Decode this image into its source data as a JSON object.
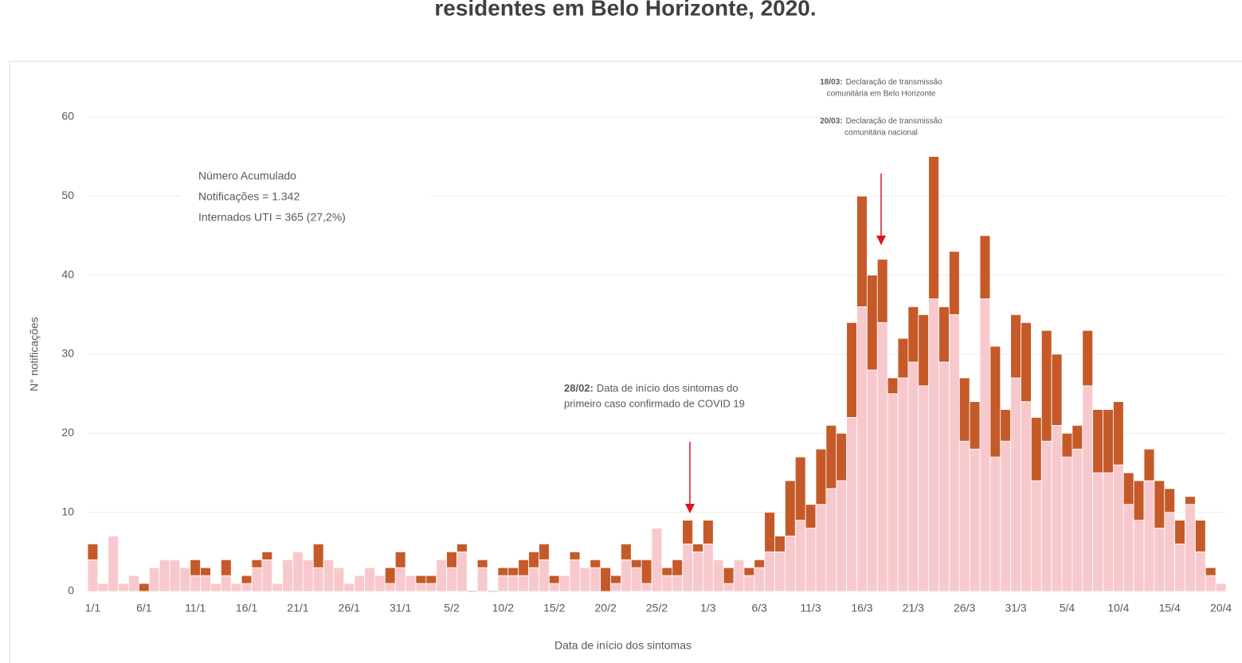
{
  "chart_data": {
    "type": "stacked_bar",
    "title": "residentes em Belo Horizonte, 2020.",
    "ylabel": "N° notificações",
    "xlabel": "Data de início dos sintomas",
    "categories": [
      "1/1",
      null,
      null,
      null,
      null,
      "6/1",
      null,
      null,
      null,
      null,
      "11/1",
      null,
      null,
      null,
      null,
      "16/1",
      null,
      null,
      null,
      null,
      "21/1",
      null,
      null,
      null,
      null,
      "26/1",
      null,
      null,
      null,
      null,
      "31/1",
      null,
      null,
      null,
      null,
      "5/2",
      null,
      null,
      null,
      null,
      "10/2",
      null,
      null,
      null,
      null,
      "15/2",
      null,
      null,
      null,
      null,
      "20/2",
      null,
      null,
      null,
      null,
      "25/2",
      null,
      null,
      null,
      null,
      "1/3",
      null,
      null,
      null,
      null,
      "6/3",
      null,
      null,
      null,
      null,
      "11/3",
      null,
      null,
      null,
      null,
      "16/3",
      null,
      null,
      null,
      null,
      "21/3",
      null,
      null,
      null,
      null,
      "26/3",
      null,
      null,
      null,
      null,
      "31/3",
      null,
      null,
      null,
      null,
      "5/4",
      null,
      null,
      null,
      null,
      "10/4",
      null,
      null,
      null,
      null,
      "15/4",
      null,
      null,
      null,
      null,
      "20/4"
    ],
    "series": [
      {
        "color": "#f8c9cc",
        "values": [
          4,
          1,
          7,
          1,
          2,
          0,
          3,
          4,
          4,
          3,
          2,
          2,
          1,
          2,
          1,
          1,
          3,
          4,
          1,
          4,
          5,
          4,
          3,
          4,
          3,
          1,
          2,
          3,
          2,
          1,
          3,
          2,
          1,
          1,
          4,
          3,
          5,
          0,
          3,
          0,
          2,
          2,
          2,
          3,
          4,
          1,
          2,
          4,
          3,
          3,
          0,
          1,
          4,
          3,
          1,
          8,
          2,
          2,
          6,
          5,
          6,
          4,
          1,
          4,
          2,
          3,
          5,
          5,
          7,
          9,
          8,
          11,
          13,
          14,
          22,
          36,
          28,
          34,
          25,
          27,
          29,
          26,
          37,
          29,
          35,
          19,
          18,
          37,
          17,
          19,
          27,
          24,
          14,
          19,
          21,
          17,
          18,
          26,
          15,
          15,
          16,
          11,
          9,
          14,
          8,
          10,
          6,
          11,
          5,
          2,
          1
        ]
      },
      {
        "color": "#c55a28",
        "values": [
          2,
          0,
          0,
          0,
          0,
          1,
          0,
          0,
          0,
          0,
          2,
          1,
          0,
          2,
          0,
          1,
          1,
          1,
          0,
          0,
          0,
          0,
          3,
          0,
          0,
          0,
          0,
          0,
          0,
          2,
          2,
          0,
          1,
          1,
          0,
          2,
          1,
          0,
          1,
          0,
          1,
          1,
          2,
          2,
          2,
          1,
          0,
          1,
          0,
          1,
          3,
          1,
          2,
          1,
          3,
          0,
          1,
          2,
          3,
          1,
          3,
          0,
          2,
          0,
          1,
          1,
          5,
          2,
          7,
          8,
          3,
          7,
          8,
          6,
          12,
          14,
          12,
          8,
          2,
          5,
          7,
          9,
          18,
          7,
          8,
          8,
          6,
          8,
          14,
          4,
          8,
          10,
          8,
          14,
          9,
          3,
          3,
          7,
          8,
          8,
          8,
          4,
          5,
          4,
          6,
          3,
          3,
          1,
          4,
          1,
          0
        ]
      }
    ],
    "ylim": [
      0,
      60
    ],
    "yticks": [
      0,
      10,
      20,
      30,
      40,
      50,
      60
    ],
    "grid": true,
    "summary": [
      "Número Acumulado",
      "Notificações = 1.342",
      "Internados UTI = 365 (27,2%)"
    ],
    "annotations": [
      {
        "date": "28/02:",
        "lines": [
          "Data de início dos sintomas do",
          "primeiro caso confirmado de COVID 19"
        ]
      },
      {
        "date": "18/03:",
        "lines": [
          "Declaração de transmissão",
          "comunitária em Belo Horizonte"
        ]
      },
      {
        "date": "20/03:",
        "lines": [
          "Declaração de transmissão",
          "comunitária nacional"
        ]
      }
    ]
  }
}
